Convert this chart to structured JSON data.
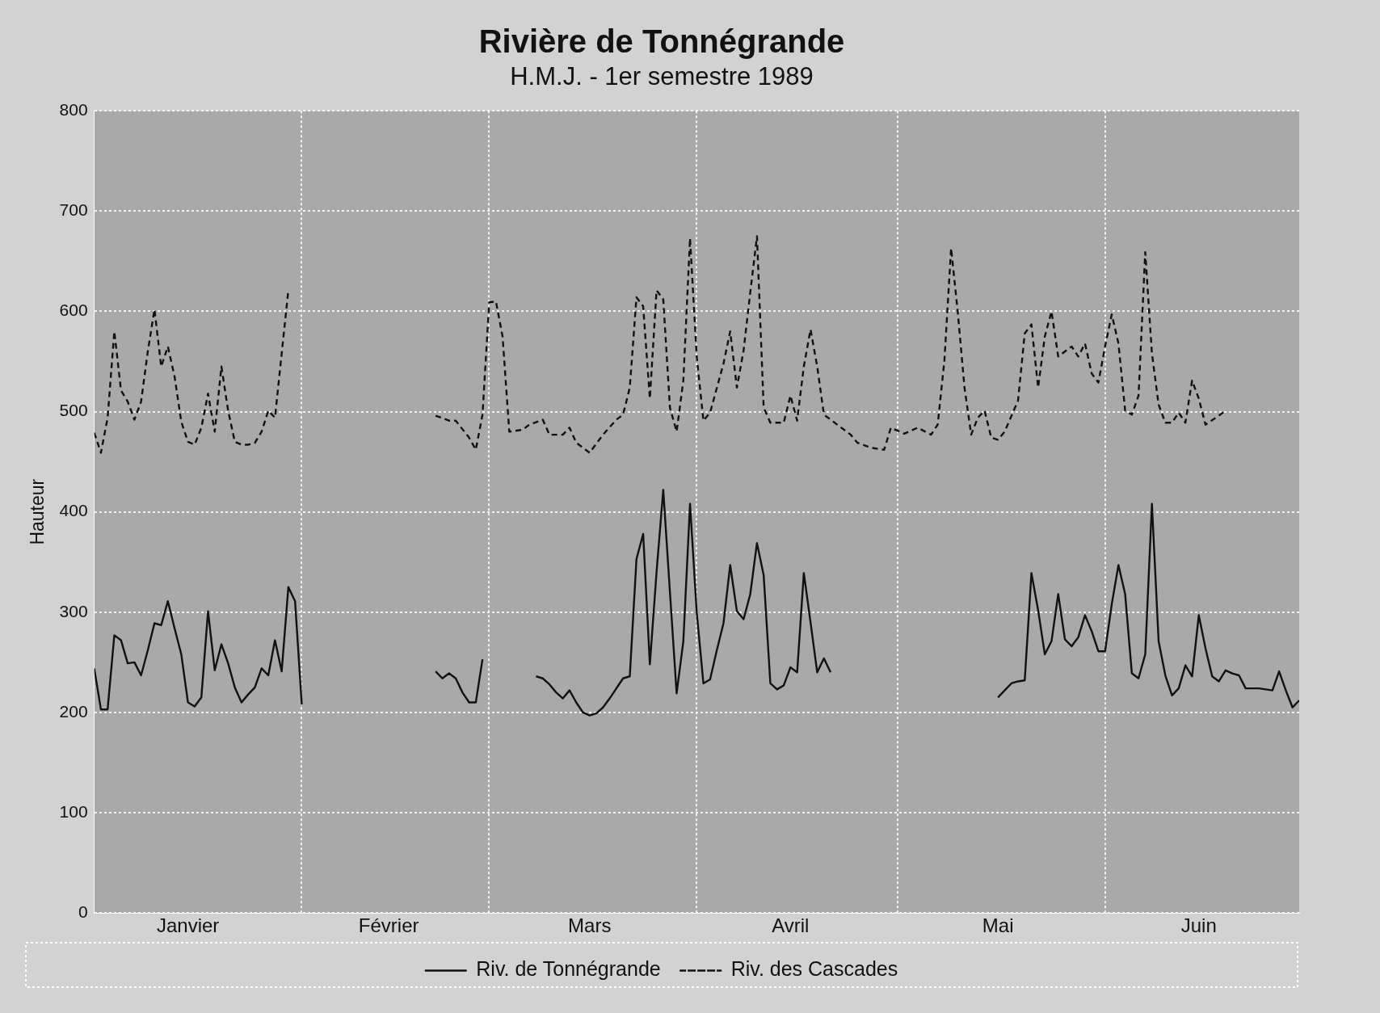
{
  "chart_data": {
    "type": "line",
    "title": "Rivière de Tonnégrande",
    "subtitle": "H.M.J. - 1er semestre 1989",
    "ylabel": "Hauteur",
    "xlim": [
      "1989-01-01",
      "1989-06-30"
    ],
    "xticks": [
      {
        "value": "1989-01-15",
        "label": "Janvier"
      },
      {
        "value": "1989-02-01",
        "label": null
      },
      {
        "value": "1989-02-14",
        "label": "Février"
      },
      {
        "value": "1989-03-01",
        "label": null
      },
      {
        "value": "1989-03-16",
        "label": "Mars"
      },
      {
        "value": "1989-04-01",
        "label": null
      },
      {
        "value": "1989-04-15",
        "label": "Avril"
      },
      {
        "value": "1989-05-01",
        "label": null
      },
      {
        "value": "1989-05-16",
        "label": "Mai"
      },
      {
        "value": "1989-06-01",
        "label": null
      },
      {
        "value": "1989-06-15",
        "label": "Juin"
      }
    ],
    "ylim": [
      0,
      800
    ],
    "yticks": [
      0,
      100,
      200,
      300,
      400,
      500,
      600,
      700,
      800
    ],
    "grid": true,
    "legend": "bottom",
    "marker": "none",
    "series": [
      {
        "name": "Riv. de Tonnégrande",
        "color": "#111111",
        "line_style": "solid",
        "x": [
          "1989-01-01",
          "1989-01-02",
          "1989-01-03",
          "1989-01-04",
          "1989-01-05",
          "1989-01-06",
          "1989-01-07",
          "1989-01-08",
          "1989-01-09",
          "1989-01-10",
          "1989-01-11",
          "1989-01-12",
          "1989-01-13",
          "1989-01-14",
          "1989-01-15",
          "1989-01-16",
          "1989-01-17",
          "1989-01-18",
          "1989-01-19",
          "1989-01-20",
          "1989-01-21",
          "1989-01-22",
          "1989-01-23",
          "1989-01-24",
          "1989-01-25",
          "1989-01-26",
          "1989-01-27",
          "1989-01-28",
          "1989-01-29",
          "1989-01-30",
          "1989-01-31",
          "1989-02-01",
          "1989-02-14",
          "1989-02-21",
          "1989-02-22",
          "1989-02-23",
          "1989-02-24",
          "1989-02-25",
          "1989-02-26",
          "1989-02-27",
          "1989-02-28",
          "1989-03-04",
          "1989-03-08",
          "1989-03-09",
          "1989-03-10",
          "1989-03-11",
          "1989-03-12",
          "1989-03-13",
          "1989-03-14",
          "1989-03-15",
          "1989-03-16",
          "1989-03-17",
          "1989-03-18",
          "1989-03-19",
          "1989-03-20",
          "1989-03-21",
          "1989-03-22",
          "1989-03-23",
          "1989-03-24",
          "1989-03-25",
          "1989-03-26",
          "1989-03-27",
          "1989-03-28",
          "1989-03-29",
          "1989-03-30",
          "1989-03-31",
          "1989-04-01",
          "1989-04-02",
          "1989-04-03",
          "1989-04-04",
          "1989-04-05",
          "1989-04-06",
          "1989-04-07",
          "1989-04-08",
          "1989-04-09",
          "1989-04-10",
          "1989-04-11",
          "1989-04-12",
          "1989-04-13",
          "1989-04-14",
          "1989-04-15",
          "1989-04-16",
          "1989-04-17",
          "1989-04-18",
          "1989-04-19",
          "1989-04-20",
          "1989-04-21",
          "1989-04-30",
          "1989-05-16",
          "1989-05-18",
          "1989-05-19",
          "1989-05-20",
          "1989-05-21",
          "1989-05-22",
          "1989-05-23",
          "1989-05-24",
          "1989-05-25",
          "1989-05-26",
          "1989-05-27",
          "1989-05-28",
          "1989-05-29",
          "1989-05-30",
          "1989-05-31",
          "1989-06-01",
          "1989-06-02",
          "1989-06-03",
          "1989-06-04",
          "1989-06-05",
          "1989-06-06",
          "1989-06-07",
          "1989-06-08",
          "1989-06-09",
          "1989-06-10",
          "1989-06-11",
          "1989-06-12",
          "1989-06-13",
          "1989-06-14",
          "1989-06-15",
          "1989-06-16",
          "1989-06-17",
          "1989-06-18",
          "1989-06-19",
          "1989-06-20",
          "1989-06-21",
          "1989-06-22",
          "1989-06-23",
          "1989-06-24",
          "1989-06-25",
          "1989-06-26",
          "1989-06-27",
          "1989-06-28",
          "1989-06-29",
          "1989-06-30"
        ],
        "values": [
          244,
          203,
          203,
          277,
          272,
          249,
          250,
          237,
          262,
          289,
          287,
          311,
          284,
          258,
          210,
          206,
          215,
          301,
          242,
          268,
          249,
          225,
          210,
          218,
          225,
          244,
          237,
          272,
          241,
          325,
          311,
          208,
          null,
          241,
          234,
          239,
          234,
          220,
          210,
          210,
          253,
          null,
          236,
          234,
          228,
          220,
          214,
          222,
          210,
          200,
          197,
          199,
          205,
          214,
          224,
          234,
          236,
          353,
          378,
          248,
          340,
          422,
          320,
          219,
          271,
          408,
          300,
          229,
          233,
          262,
          289,
          347,
          301,
          293,
          318,
          369,
          337,
          229,
          223,
          227,
          245,
          240,
          339,
          290,
          240,
          254,
          240,
          null,
          215,
          229,
          231,
          232,
          339,
          302,
          258,
          271,
          318,
          273,
          266,
          275,
          297,
          281,
          261,
          261,
          308,
          347,
          318,
          239,
          234,
          258,
          408,
          271,
          237,
          217,
          224,
          247,
          236,
          297,
          264,
          236,
          231,
          242,
          239,
          237,
          224,
          224,
          224,
          223,
          222,
          241,
          222,
          205,
          212
        ]
      },
      {
        "name": "Riv. des Cascades",
        "color": "#111111",
        "line_style": "dashed",
        "x": [
          "1989-01-01",
          "1989-01-02",
          "1989-01-03",
          "1989-01-04",
          "1989-01-05",
          "1989-01-06",
          "1989-01-07",
          "1989-01-08",
          "1989-01-09",
          "1989-01-10",
          "1989-01-11",
          "1989-01-12",
          "1989-01-13",
          "1989-01-14",
          "1989-01-15",
          "1989-01-16",
          "1989-01-17",
          "1989-01-18",
          "1989-01-19",
          "1989-01-20",
          "1989-01-21",
          "1989-01-22",
          "1989-01-23",
          "1989-01-24",
          "1989-01-25",
          "1989-01-26",
          "1989-01-27",
          "1989-01-28",
          "1989-01-29",
          "1989-01-30",
          "1989-02-09",
          "1989-02-21",
          "1989-02-23",
          "1989-02-24",
          "1989-02-26",
          "1989-02-27",
          "1989-02-28",
          "1989-03-01",
          "1989-03-02",
          "1989-03-03",
          "1989-03-04",
          "1989-03-06",
          "1989-03-07",
          "1989-03-09",
          "1989-03-10",
          "1989-03-12",
          "1989-03-13",
          "1989-03-14",
          "1989-03-16",
          "1989-03-18",
          "1989-03-20",
          "1989-03-21",
          "1989-03-22",
          "1989-03-23",
          "1989-03-24",
          "1989-03-25",
          "1989-03-26",
          "1989-03-27",
          "1989-03-28",
          "1989-03-29",
          "1989-03-30",
          "1989-03-31",
          "1989-04-01",
          "1989-04-02",
          "1989-04-03",
          "1989-04-05",
          "1989-04-06",
          "1989-04-07",
          "1989-04-08",
          "1989-04-09",
          "1989-04-10",
          "1989-04-11",
          "1989-04-12",
          "1989-04-14",
          "1989-04-15",
          "1989-04-16",
          "1989-04-17",
          "1989-04-18",
          "1989-04-19",
          "1989-04-20",
          "1989-04-22",
          "1989-04-24",
          "1989-04-25",
          "1989-04-27",
          "1989-04-29",
          "1989-04-30",
          "1989-05-02",
          "1989-05-04",
          "1989-05-06",
          "1989-05-07",
          "1989-05-08",
          "1989-05-09",
          "1989-05-10",
          "1989-05-11",
          "1989-05-12",
          "1989-05-13",
          "1989-05-14",
          "1989-05-15",
          "1989-05-16",
          "1989-05-17",
          "1989-05-19",
          "1989-05-20",
          "1989-05-21",
          "1989-05-22",
          "1989-05-23",
          "1989-05-24",
          "1989-05-25",
          "1989-05-27",
          "1989-05-28",
          "1989-05-29",
          "1989-05-30",
          "1989-05-31",
          "1989-06-01",
          "1989-06-02",
          "1989-06-03",
          "1989-06-04",
          "1989-06-05",
          "1989-06-06",
          "1989-06-07",
          "1989-06-08",
          "1989-06-09",
          "1989-06-10",
          "1989-06-11",
          "1989-06-12",
          "1989-06-13",
          "1989-06-14",
          "1989-06-15",
          "1989-06-16",
          "1989-06-18",
          "1989-06-19"
        ],
        "values": [
          479,
          459,
          494,
          580,
          521,
          510,
          492,
          510,
          560,
          602,
          545,
          565,
          535,
          490,
          470,
          467,
          484,
          518,
          480,
          545,
          501,
          470,
          467,
          467,
          469,
          480,
          501,
          494,
          558,
          621,
          null,
          496,
          491,
          491,
          474,
          462,
          497,
          609,
          610,
          575,
          480,
          482,
          487,
          492,
          477,
          477,
          484,
          469,
          459,
          477,
          492,
          497,
          524,
          614,
          605,
          513,
          621,
          612,
          504,
          480,
          531,
          673,
          555,
          491,
          499,
          548,
          580,
          524,
          561,
          619,
          675,
          504,
          489,
          489,
          516,
          491,
          545,
          582,
          545,
          497,
          487,
          477,
          469,
          464,
          462,
          484,
          478,
          484,
          477,
          487,
          551,
          663,
          599,
          524,
          477,
          494,
          501,
          474,
          472,
          480,
          511,
          578,
          587,
          524,
          575,
          600,
          555,
          565,
          555,
          568,
          538,
          529,
          565,
          597,
          568,
          501,
          497,
          516,
          659,
          558,
          507,
          489,
          489,
          499,
          489,
          531,
          513,
          487,
          496,
          501
        ]
      }
    ]
  }
}
